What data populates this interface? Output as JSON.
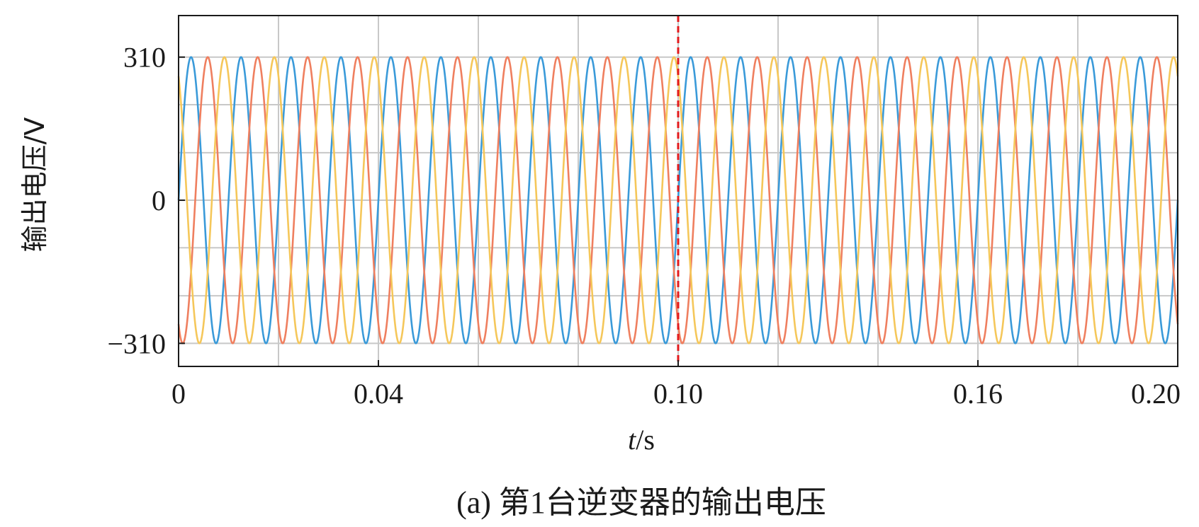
{
  "chart_data": {
    "type": "line",
    "title": "",
    "caption": "(a) 第1台逆变器的输出电压",
    "xlabel_italic": "t",
    "xlabel_unit": "/s",
    "ylabel": "输出电压/V",
    "xlim": [
      0,
      0.2
    ],
    "ylim": [
      -360,
      400
    ],
    "x_ticks": [
      0,
      0.04,
      0.1,
      0.16,
      0.2
    ],
    "x_tick_labels": [
      "0",
      "0.04",
      "0.10",
      "0.16",
      "0.20"
    ],
    "y_ticks": [
      310,
      0,
      -310
    ],
    "y_tick_labels": [
      "310",
      "0",
      "−310"
    ],
    "x_grid": [
      0.02,
      0.04,
      0.06,
      0.08,
      0.1,
      0.12,
      0.14,
      0.16,
      0.18
    ],
    "y_grid": [
      310,
      207,
      103,
      0,
      -103,
      -207,
      -310
    ],
    "grid": true,
    "vline": {
      "x": 0.1,
      "color": "#e31a1c",
      "style": "dashed"
    },
    "series": [
      {
        "amplitude": 310,
        "frequency_hz": 100,
        "phase_deg": 0,
        "color": "#3a9ad9"
      },
      {
        "amplitude": 310,
        "frequency_hz": 100,
        "phase_deg": -120,
        "color": "#ef7f5f"
      },
      {
        "amplitude": 310,
        "frequency_hz": 100,
        "phase_deg": 120,
        "color": "#f5c75a"
      }
    ]
  }
}
